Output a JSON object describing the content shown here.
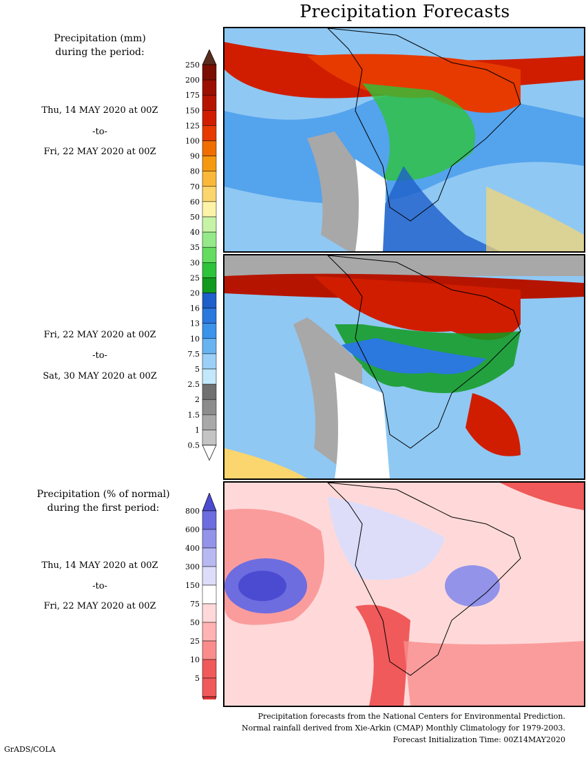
{
  "title": "Precipitation Forecasts",
  "colorbar_mm": {
    "title_line1": "Precipitation (mm)",
    "title_line2": "during the period:",
    "levels": [
      "250",
      "200",
      "175",
      "150",
      "125",
      "100",
      "90",
      "80",
      "70",
      "60",
      "50",
      "40",
      "35",
      "30",
      "25",
      "20",
      "16",
      "13",
      "10",
      "7.5",
      "5",
      "2.5",
      "2",
      "1.5",
      "1",
      "0.5"
    ],
    "colors": [
      "#5a2c1e",
      "#7a0e00",
      "#9b1000",
      "#b51500",
      "#d01d00",
      "#e63a00",
      "#f06e00",
      "#f59a10",
      "#f9b83a",
      "#fbd56e",
      "#fdf3a8",
      "#c6f3a5",
      "#95e98a",
      "#63dc5f",
      "#2dc33b",
      "#119a1e",
      "#1e5fc9",
      "#2b78de",
      "#3b93ea",
      "#68b4f1",
      "#9cd0f7",
      "#c3e7fb",
      "#707070",
      "#8c8c8c",
      "#a8a8a8",
      "#c4c4c4"
    ]
  },
  "period1": {
    "start": "Thu, 14 MAY 2020 at 00Z",
    "sep": "-to-",
    "end": "Fri, 22 MAY 2020 at 00Z"
  },
  "period2": {
    "start": "Fri, 22 MAY 2020 at 00Z",
    "sep": "-to-",
    "end": "Sat, 30 MAY 2020 at 00Z"
  },
  "colorbar_pct": {
    "title_line1": "Precipitation (% of normal)",
    "title_line2": "during the first period:",
    "levels": [
      "800",
      "600",
      "400",
      "300",
      "150",
      "75",
      "50",
      "25",
      "10",
      "5"
    ],
    "colors": [
      "#4b4bd2",
      "#6d6de0",
      "#9393ea",
      "#b9b9f2",
      "#ddddfa",
      "#ffffff",
      "#ffd9d9",
      "#ffb3b3",
      "#fa8c8c",
      "#f05a5a",
      "#e63232"
    ]
  },
  "period3": {
    "start": "Thu, 14 MAY 2020 at 00Z",
    "sep": "-to-",
    "end": "Fri, 22 MAY 2020 at 00Z"
  },
  "footer": {
    "line1": "Precipitation forecasts from the National Centers for Environmental Prediction.",
    "line2": "Normal rainfall derived from Xie-Arkin (CMAP) Monthly Climatology for 1979-2003.",
    "line3": "Forecast Initialization Time: 00Z14MAY2020"
  },
  "credit": "GrADS/COLA"
}
